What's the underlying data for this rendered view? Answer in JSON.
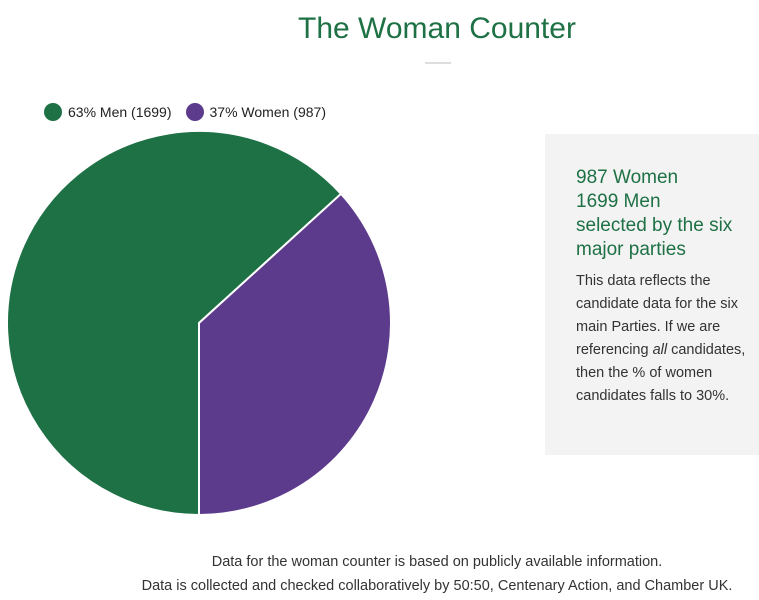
{
  "page": {
    "title": "The Woman Counter"
  },
  "legend": [
    {
      "label": "63% Men (1699)",
      "color": "#1e7145"
    },
    {
      "label": "37% Women (987)",
      "color": "#5c3a8c"
    }
  ],
  "chart_data": {
    "type": "pie",
    "categories": [
      "Men",
      "Women"
    ],
    "values": [
      1699,
      987
    ],
    "percentages": [
      63,
      37
    ],
    "colors": [
      "#1e7145",
      "#5c3a8c"
    ],
    "legend": "top-left"
  },
  "info": {
    "heading_lines": [
      "987 Women",
      "1699 Men",
      "selected by the six",
      "major parties"
    ],
    "body_before_em": "This data reflects the candidate data for the six main Parties. If we are referencing ",
    "body_em": "all",
    "body_after_em": " candidates, then the % of women candidates falls to 30%."
  },
  "footer": {
    "line1": "Data for the woman counter is based on publicly available information.",
    "line2": "Data is collected and checked collaboratively by 50:50, Centenary Action, and Chamber UK."
  }
}
